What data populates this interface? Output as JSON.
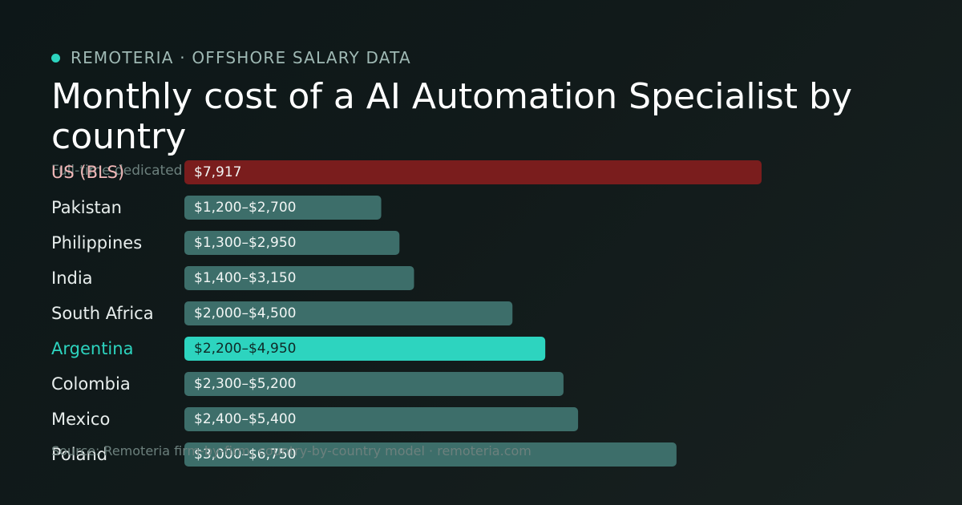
{
  "brand": {
    "text": "REMOTERIA · OFFSHORE SALARY DATA"
  },
  "title": "Monthly cost of a AI Automation Specialist by country",
  "subtitle": "Full-time dedicated",
  "footer": "Source: Remoteria firm-by-firm, country-by-country model · remoteria.com",
  "colors": {
    "accent": "#2dd4bf",
    "us_bar": "#7a1d1d",
    "default_bar": "#3d6e6a",
    "us_label": "#f2b8b8",
    "highlight_label": "#2dd4bf"
  },
  "chart_data": {
    "type": "bar",
    "orientation": "horizontal",
    "categories": [
      "US (BLS)",
      "Pakistan",
      "Philippines",
      "India",
      "South Africa",
      "Argentina",
      "Colombia",
      "Mexico",
      "Poland"
    ],
    "low": [
      7917,
      1200,
      1300,
      1400,
      2000,
      2200,
      2300,
      2400,
      3000
    ],
    "high": [
      7917,
      2700,
      2950,
      3150,
      4500,
      4950,
      5200,
      5400,
      6750
    ],
    "labels": [
      "$7,917",
      "$1,200–$2,700",
      "$1,300–$2,950",
      "$1,400–$3,150",
      "$2,000–$4,500",
      "$2,200–$4,950",
      "$2,300–$5,200",
      "$2,400–$5,400",
      "$3,000–$6,750"
    ],
    "highlight": "Argentina",
    "reference": "US (BLS)",
    "unit": "USD per month",
    "title": "Monthly cost of a AI Automation Specialist by country"
  }
}
